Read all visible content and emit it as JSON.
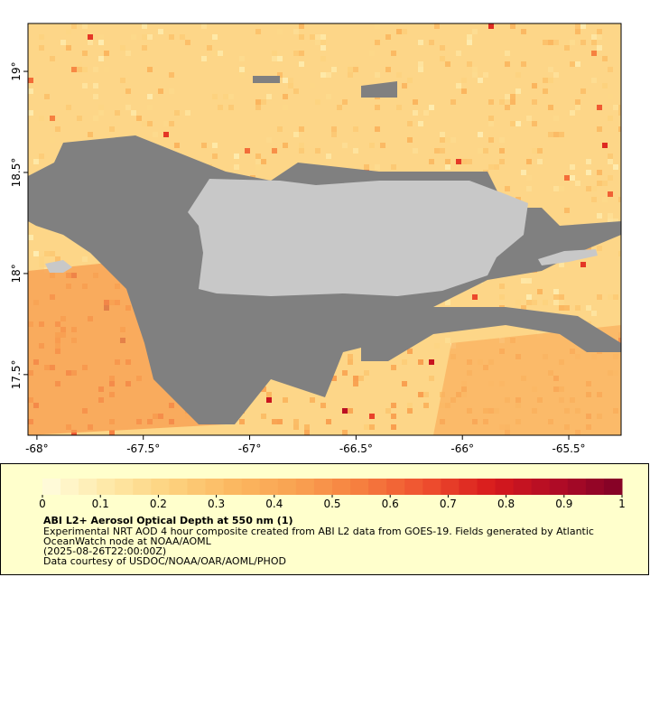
{
  "chart_data": {
    "type": "map",
    "xlim": [
      -68.042,
      -65.254
    ],
    "ylim": [
      17.2,
      19.237
    ],
    "xticks": [
      {
        "value": -68,
        "label": "-68°"
      },
      {
        "value": -67.5,
        "label": "-67.5°"
      },
      {
        "value": -67,
        "label": "-67°"
      },
      {
        "value": -66.5,
        "label": "-66.5°"
      },
      {
        "value": -66,
        "label": "-66°"
      },
      {
        "value": -65.5,
        "label": "-65.5°"
      }
    ],
    "yticks": [
      {
        "value": 17.5,
        "label": "17.5°"
      },
      {
        "value": 18,
        "label": "18°"
      },
      {
        "value": 18.5,
        "label": "18.5°"
      },
      {
        "value": 19,
        "label": "19°"
      }
    ],
    "colorbar": {
      "clim": [
        0,
        1
      ],
      "ticks": [
        0,
        0.1,
        0.2,
        0.3,
        0.4,
        0.5,
        0.6,
        0.7,
        0.8,
        0.9,
        1
      ],
      "colormap": [
        "#fffde0",
        "#fee9a8",
        "#fdd27e",
        "#fbb760",
        "#f9a050",
        "#f67c3e",
        "#ee4d2e",
        "#d7191c",
        "#b00b26",
        "#800026"
      ]
    },
    "title": "ABI L2+ Aerosol Optical Depth at 550 nm (1)",
    "description": [
      "Experimental NRT AOD 4 hour composite created from ABI L2 data from GOES-19. Fields generated by Atlantic",
      "OceanWatch node at NOAA/AOML",
      "(2025-08-26T22:00:00Z)",
      "Data courtesy of USDOC/NOAA/OAR/AOML/PHOD"
    ]
  }
}
